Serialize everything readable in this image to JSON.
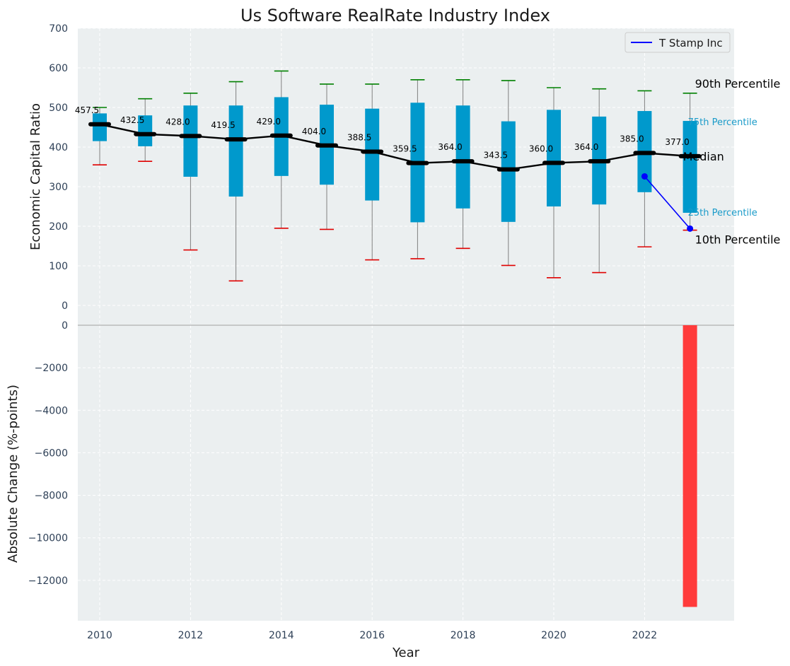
{
  "chart_data": {
    "title": "Us Software RealRate Industry Index",
    "type": "box-with-line",
    "top_panel": {
      "ylabel": "Economic Capital Ratio",
      "ylim": [
        0,
        700
      ],
      "yticks": [
        "0",
        "100",
        "200",
        "300",
        "400",
        "500",
        "600",
        "700"
      ],
      "grid": true,
      "legend_position": "top-right",
      "years": [
        2010,
        2011,
        2012,
        2013,
        2014,
        2015,
        2016,
        2017,
        2018,
        2019,
        2020,
        2021,
        2022,
        2023
      ],
      "p10": [
        355,
        364,
        140,
        62,
        195,
        192,
        115,
        118,
        144,
        101,
        70,
        83,
        148,
        190
      ],
      "q1": [
        415,
        402,
        325,
        275,
        327,
        305,
        265,
        210,
        245,
        211,
        250,
        255,
        286,
        234
      ],
      "median": [
        457.5,
        432.5,
        428.0,
        419.5,
        429.0,
        404.0,
        388.5,
        359.5,
        364.0,
        343.5,
        360.0,
        364.0,
        385.0,
        377.0
      ],
      "median_labels": [
        "457.5",
        "432.5",
        "428.0",
        "419.5",
        "429.0",
        "404.0",
        "388.5",
        "359.5",
        "364.0",
        "343.5",
        "360.0",
        "364.0",
        "385.0",
        "377.0"
      ],
      "q3": [
        485,
        480,
        505,
        505,
        526,
        507,
        497,
        512,
        505,
        465,
        494,
        477,
        491,
        466
      ],
      "p90": [
        500,
        522,
        536,
        565,
        592,
        559,
        559,
        570,
        570,
        568,
        550,
        547,
        542,
        536
      ],
      "company_series": {
        "name": "T Stamp Inc",
        "color": "#0000ff",
        "x": [
          2022,
          2023
        ],
        "y": [
          326,
          194
        ]
      },
      "annotations": {
        "p90": "90th Percentile",
        "q3": "75th Percentile",
        "median": "Median",
        "q1": "25th Percentile",
        "p10": "10th Percentile"
      }
    },
    "bottom_panel": {
      "type": "bar",
      "ylabel": "Absolute Change (%-points)",
      "xlabel": "Year",
      "ylim": [
        -13900,
        0
      ],
      "yticks": [
        "0",
        "−2000",
        "−4000",
        "−6000",
        "−8000",
        "−10000",
        "−12000"
      ],
      "xticks": [
        "2010",
        "2012",
        "2014",
        "2016",
        "2018",
        "2020",
        "2022"
      ],
      "bars": [
        {
          "x": 2023,
          "value": -13250,
          "color": "#ff3b3b"
        }
      ]
    },
    "colors": {
      "box": "#0099cc",
      "median_line": "#000000",
      "p90_cap": "#008000",
      "p10_cap": "#e00000",
      "whisker": "#808080",
      "panel_bg": "#ebeff0",
      "grid": "#ffffff"
    }
  }
}
